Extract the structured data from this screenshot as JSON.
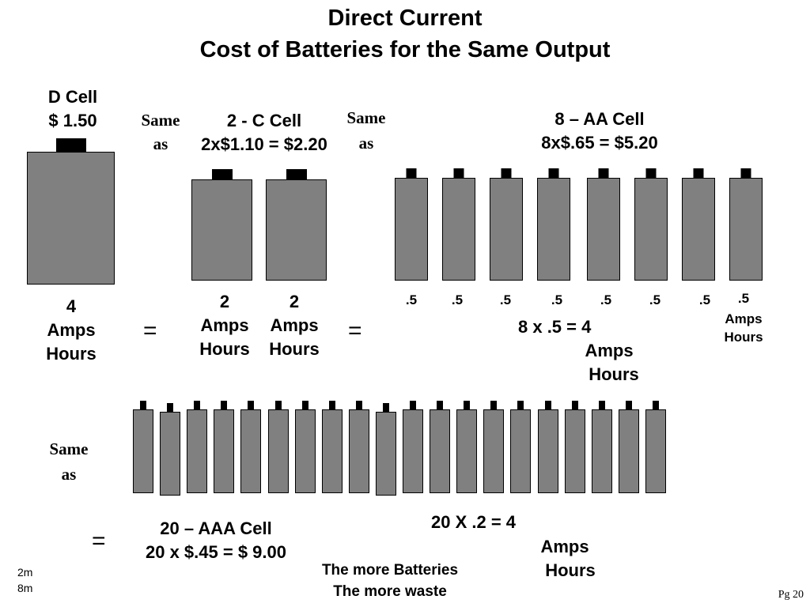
{
  "title": {
    "line1": "Direct Current",
    "line2": "Cost of Batteries for the Same Output"
  },
  "d_cell": {
    "name": "D  Cell",
    "price": "$ 1.50",
    "capacity": [
      "4",
      "Amps",
      "Hours"
    ]
  },
  "same_as_1": [
    "Same",
    "as"
  ],
  "c_cell": {
    "name": "2 - C Cell",
    "price": "2x$1.10 = $2.20",
    "cap_a": [
      "2",
      "Amps",
      "Hours"
    ],
    "cap_b": [
      "2",
      "Amps",
      "Hours"
    ]
  },
  "same_as_2": [
    "Same",
    "as"
  ],
  "aa_cell": {
    "name": "8 – AA Cell",
    "price": "8x$.65 = $5.20",
    "each": [
      ".5",
      ".5",
      ".5",
      ".5",
      ".5",
      ".5",
      ".5",
      ".5"
    ],
    "each_last_extra": [
      "Amps",
      "Hours"
    ],
    "total": [
      "8 x .5  = 4",
      "Amps",
      "Hours"
    ]
  },
  "equals": [
    "=",
    "=",
    "="
  ],
  "same_as_3": [
    "Same",
    "as"
  ],
  "aaa_cell": {
    "name": "20 – AAA Cell",
    "price": "20 x $.45 = $ 9.00",
    "total": [
      "20  X   .2  = 4",
      "Amps",
      "Hours"
    ],
    "count": 20
  },
  "waste_note": [
    "The more Batteries",
    "The more waste"
  ],
  "corner_note": [
    "2m",
    "8m"
  ],
  "page_number": "Pg 20",
  "colors": {
    "battery_body": "#808080",
    "terminal": "#000000",
    "background": "#ffffff"
  }
}
